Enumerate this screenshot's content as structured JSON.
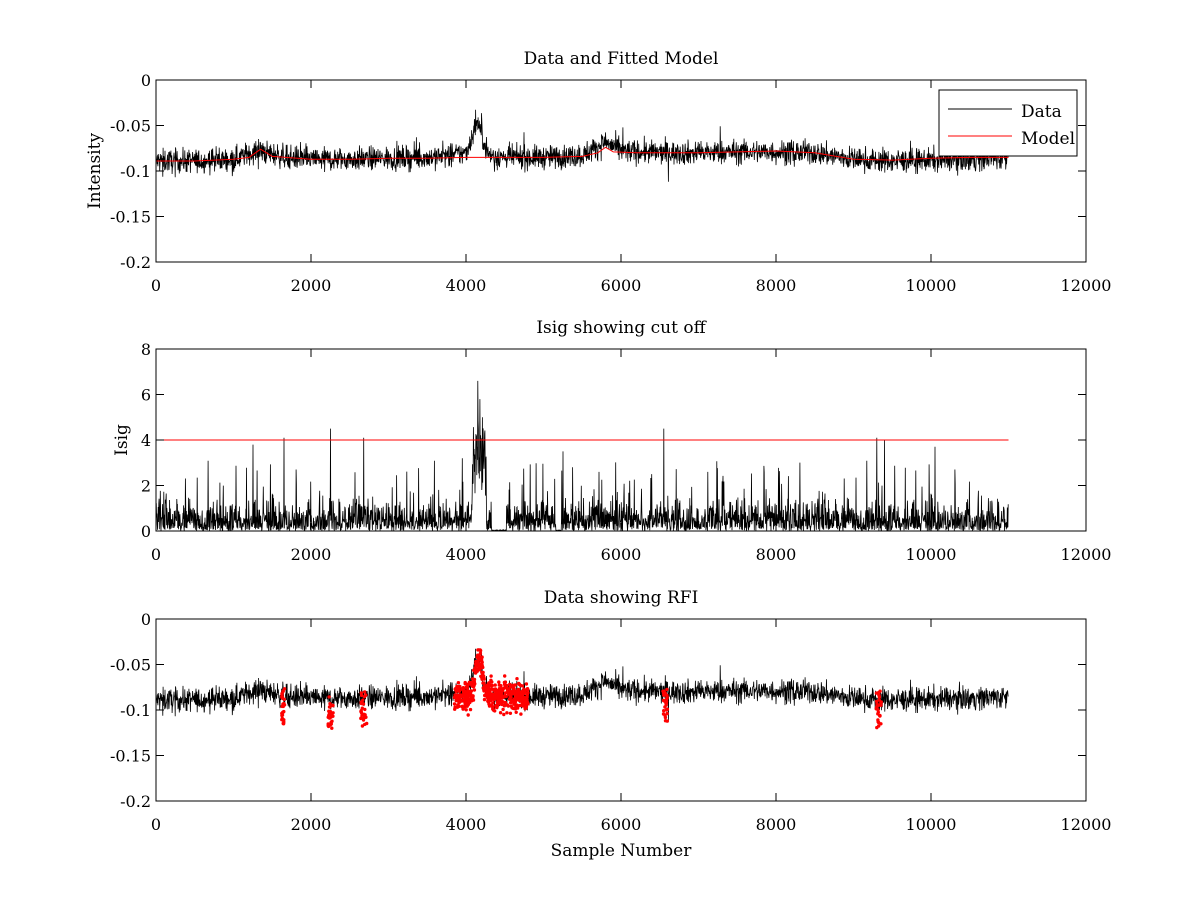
{
  "chart_data": [
    {
      "type": "line",
      "title": "Data and Fitted Model",
      "xlabel": "",
      "ylabel": "Intensity",
      "xlim": [
        0,
        12000
      ],
      "ylim": [
        -0.2,
        0
      ],
      "xticks": [
        0,
        2000,
        4000,
        6000,
        8000,
        10000,
        12000
      ],
      "yticks": [
        0,
        -0.05,
        -0.1,
        -0.15,
        -0.2
      ],
      "xtick_labels": [
        "0",
        "2000",
        "4000",
        "6000",
        "8000",
        "10000",
        "12000"
      ],
      "ytick_labels": [
        "0",
        "-0.05",
        "-0.1",
        "-0.15",
        "-0.2"
      ],
      "legend": {
        "position": "top-right",
        "entries": [
          "Data",
          "Model"
        ]
      },
      "series": [
        {
          "name": "Data",
          "color": "#000000",
          "style": "noisy line, about 11000 samples, spread about ±0.015 around the baseline",
          "x": [
            0,
            500,
            1000,
            1300,
            1700,
            2000,
            2500,
            3000,
            3500,
            3800,
            4000,
            4150,
            4200,
            4300,
            4500,
            5000,
            5500,
            5800,
            6000,
            6500,
            7000,
            7500,
            8000,
            8500,
            9000,
            9500,
            10000,
            10500,
            11000
          ],
          "y": [
            -0.089,
            -0.089,
            -0.087,
            -0.078,
            -0.085,
            -0.087,
            -0.087,
            -0.086,
            -0.085,
            -0.083,
            -0.08,
            -0.045,
            -0.06,
            -0.083,
            -0.085,
            -0.085,
            -0.083,
            -0.068,
            -0.078,
            -0.08,
            -0.08,
            -0.079,
            -0.079,
            -0.08,
            -0.087,
            -0.089,
            -0.088,
            -0.087,
            -0.085
          ]
        },
        {
          "name": "Model",
          "color": "#ff0000",
          "x": [
            0,
            500,
            1000,
            1200,
            1350,
            1500,
            2000,
            2500,
            3000,
            3500,
            4000,
            4500,
            5000,
            5500,
            5700,
            5800,
            5900,
            6200,
            6500,
            7000,
            7500,
            8000,
            8500,
            9000,
            9500,
            10000,
            10500,
            11000
          ],
          "y": [
            -0.089,
            -0.089,
            -0.087,
            -0.085,
            -0.076,
            -0.084,
            -0.087,
            -0.087,
            -0.086,
            -0.086,
            -0.085,
            -0.085,
            -0.085,
            -0.084,
            -0.08,
            -0.074,
            -0.079,
            -0.08,
            -0.08,
            -0.08,
            -0.079,
            -0.078,
            -0.08,
            -0.087,
            -0.088,
            -0.086,
            -0.085,
            -0.085
          ]
        }
      ]
    },
    {
      "type": "line",
      "title": "Isig showing cut off",
      "xlabel": "",
      "ylabel": "Isig",
      "xlim": [
        0,
        12000
      ],
      "ylim": [
        0,
        8
      ],
      "xticks": [
        0,
        2000,
        4000,
        6000,
        8000,
        10000,
        12000
      ],
      "yticks": [
        0,
        2,
        4,
        6,
        8
      ],
      "xtick_labels": [
        "0",
        "2000",
        "4000",
        "6000",
        "8000",
        "10000",
        "12000"
      ],
      "ytick_labels": [
        "0",
        "2",
        "4",
        "6",
        "8"
      ],
      "cutoff": {
        "value": 4,
        "color": "#ff0000",
        "x_range": [
          0,
          11000
        ]
      },
      "series": [
        {
          "color": "#000000",
          "style": "dense noise between 0 and about 2.5",
          "spikes": [
            {
              "x": 1250,
              "y": 3.8
            },
            {
              "x": 1650,
              "y": 4.1
            },
            {
              "x": 2250,
              "y": 4.5
            },
            {
              "x": 2680,
              "y": 4.1
            },
            {
              "x": 3950,
              "y": 3.2
            },
            {
              "x": 4150,
              "y": 6.6
            },
            {
              "x": 4180,
              "y": 5.8
            },
            {
              "x": 4210,
              "y": 5.0
            },
            {
              "x": 5250,
              "y": 3.5
            },
            {
              "x": 6550,
              "y": 4.5
            },
            {
              "x": 9300,
              "y": 4.1
            },
            {
              "x": 9400,
              "y": 4.0
            },
            {
              "x": 10050,
              "y": 3.7
            }
          ],
          "gaps": [
            [
              4330,
              4520
            ],
            [
              5160,
              5230
            ]
          ]
        }
      ]
    },
    {
      "type": "scatter",
      "title": "Data showing RFI",
      "xlabel": "Sample Number",
      "ylabel": "",
      "xlim": [
        0,
        12000
      ],
      "ylim": [
        -0.2,
        0
      ],
      "xticks": [
        0,
        2000,
        4000,
        6000,
        8000,
        10000,
        12000
      ],
      "yticks": [
        0,
        -0.05,
        -0.1,
        -0.15,
        -0.2
      ],
      "xtick_labels": [
        "0",
        "2000",
        "4000",
        "6000",
        "8000",
        "10000",
        "12000"
      ],
      "ytick_labels": [
        "0",
        "-0.05",
        "-0.1",
        "-0.15",
        "-0.2"
      ],
      "series": [
        {
          "color": "#000000",
          "style": "noisy data line, same as the top panel"
        },
        {
          "color": "#ff0000",
          "style": "red dot markers flagging RFI",
          "regions": [
            {
              "x_start": 1620,
              "x_end": 1660,
              "y_min": -0.116,
              "y_max": -0.076
            },
            {
              "x_start": 2220,
              "x_end": 2290,
              "y_min": -0.12,
              "y_max": -0.082
            },
            {
              "x_start": 2640,
              "x_end": 2720,
              "y_min": -0.118,
              "y_max": -0.078
            },
            {
              "x_start": 3850,
              "x_end": 4800,
              "y_min": -0.118,
              "y_max": -0.034
            },
            {
              "x_start": 6540,
              "x_end": 6600,
              "y_min": -0.114,
              "y_max": -0.076
            },
            {
              "x_start": 9290,
              "x_end": 9360,
              "y_min": -0.12,
              "y_max": -0.078
            }
          ]
        }
      ]
    }
  ]
}
